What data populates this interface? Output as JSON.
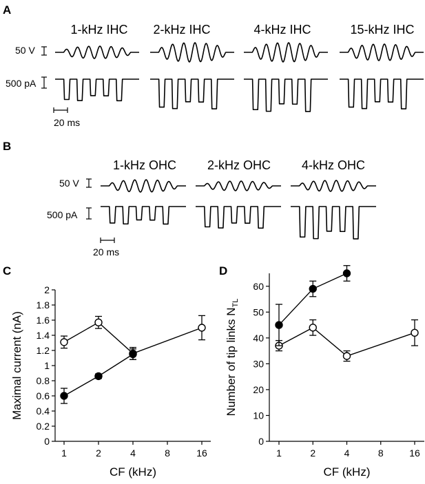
{
  "panel_a": {
    "letter": "A",
    "titles": [
      "1-kHz IHC",
      "2-kHz IHC",
      "4-kHz IHC",
      "15-kHz IHC"
    ],
    "voltage_scale": "50 V",
    "current_scale": "500 pA",
    "time_scale": "20 ms"
  },
  "panel_b": {
    "letter": "B",
    "titles": [
      "1-kHz OHC",
      "2-kHz OHC",
      "4-kHz OHC"
    ],
    "voltage_scale": "50 V",
    "current_scale": "500 pA",
    "time_scale": "20 ms"
  },
  "chart_data": [
    {
      "panel": "C",
      "type": "line",
      "xlabel": "CF (kHz)",
      "ylabel": "Maximal current (nA)",
      "x_scale": "log2",
      "xlim": [
        1,
        16
      ],
      "ylim": [
        0,
        2
      ],
      "xticks": [
        1,
        2,
        4,
        8,
        16
      ],
      "yticks": [
        0,
        0.2,
        0.4,
        0.6,
        0.8,
        1,
        1.2,
        1.4,
        1.6,
        1.8,
        2
      ],
      "series": [
        {
          "marker": "open",
          "x": [
            1,
            2,
            4,
            16
          ],
          "y": [
            1.31,
            1.57,
            1.16,
            1.5
          ],
          "err": [
            0.08,
            0.08,
            0.08,
            0.16
          ]
        },
        {
          "marker": "filled",
          "x": [
            1,
            2,
            4
          ],
          "y": [
            0.6,
            0.86,
            1.15
          ],
          "err": [
            0.1,
            0.03,
            0.07
          ]
        }
      ]
    },
    {
      "panel": "D",
      "type": "line",
      "xlabel": "CF (kHz)",
      "ylabel": "Number of tip links N",
      "ylabel_sub": "TL",
      "x_scale": "log2",
      "xlim": [
        1,
        16
      ],
      "ylim": [
        0,
        65
      ],
      "xticks": [
        1,
        2,
        4,
        8,
        16
      ],
      "yticks": [
        0,
        10,
        20,
        30,
        40,
        50,
        60
      ],
      "series": [
        {
          "marker": "open",
          "x": [
            1,
            2,
            4,
            16
          ],
          "y": [
            37,
            44,
            33,
            42
          ],
          "err": [
            2,
            3,
            2,
            5
          ]
        },
        {
          "marker": "filled",
          "x": [
            1,
            2,
            4
          ],
          "y": [
            45,
            59,
            65
          ],
          "err": [
            8,
            3,
            3
          ]
        }
      ]
    }
  ]
}
